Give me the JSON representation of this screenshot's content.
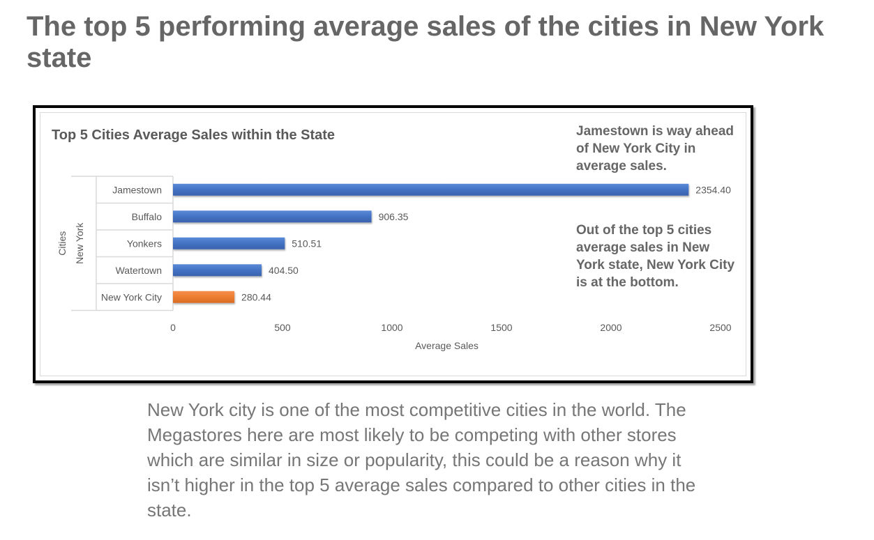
{
  "slide": {
    "title": "The top 5 performing average sales of the cities in New York state",
    "body_text": "New York city is one of the most competitive cities in the world. The Megastores here are most likely to be competing with other stores which are similar in size or popularity, this could be a reason why it isn’t higher in the top 5 average sales compared to other cities in the state."
  },
  "annotations": {
    "top": "Jamestown is way ahead of New York City in average sales.",
    "middle": "Out of the top 5 cities average sales in New York state, New York City is at the bottom."
  },
  "colors": {
    "bar_default": "#4472c4",
    "bar_highlight": "#ed7d31",
    "axis_text": "#595959",
    "title_text": "#595959"
  },
  "chart_data": {
    "type": "bar",
    "orientation": "horizontal",
    "title": "Top 5 Cities Average Sales within the State",
    "categories": [
      "Jamestown",
      "Buffalo",
      "Yonkers",
      "Watertown",
      "New York City"
    ],
    "values": [
      2354.4,
      906.35,
      510.51,
      404.5,
      280.44
    ],
    "value_labels": [
      "2354.40",
      "906.35",
      "510.51",
      "404.50",
      "280.44"
    ],
    "highlight": [
      false,
      false,
      false,
      false,
      true
    ],
    "xlabel": "Average Sales",
    "ylabel_outer": "Cities",
    "ylabel_inner": "New York",
    "xlim": [
      0,
      2500
    ],
    "xticks": [
      0,
      500,
      1000,
      1500,
      2000,
      2500
    ],
    "grid": false,
    "legend": "none"
  }
}
